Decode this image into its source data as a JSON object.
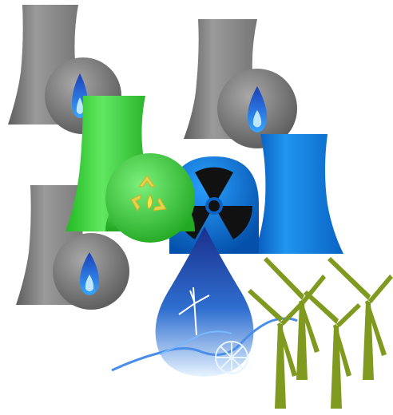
{
  "illustration": {
    "subjects": [
      "gas-power-plant-icon",
      "biomass-power-plant-icon",
      "nuclear-power-plant-icon",
      "hydro-power-drop-icon",
      "wind-turbine-icon"
    ],
    "colors": {
      "background": "#ffffff",
      "gas_tower": "#8a8a8a",
      "gas_flame": "#1e5fd0",
      "bio_green": "#3fd23f",
      "recycle_yellow": "#e2d34a",
      "nuclear_blue": "#0a78d8",
      "radiation_black": "#111111",
      "hydro_blue": "#1f3fa8",
      "turbine_olive": "#7f9a1f"
    }
  }
}
